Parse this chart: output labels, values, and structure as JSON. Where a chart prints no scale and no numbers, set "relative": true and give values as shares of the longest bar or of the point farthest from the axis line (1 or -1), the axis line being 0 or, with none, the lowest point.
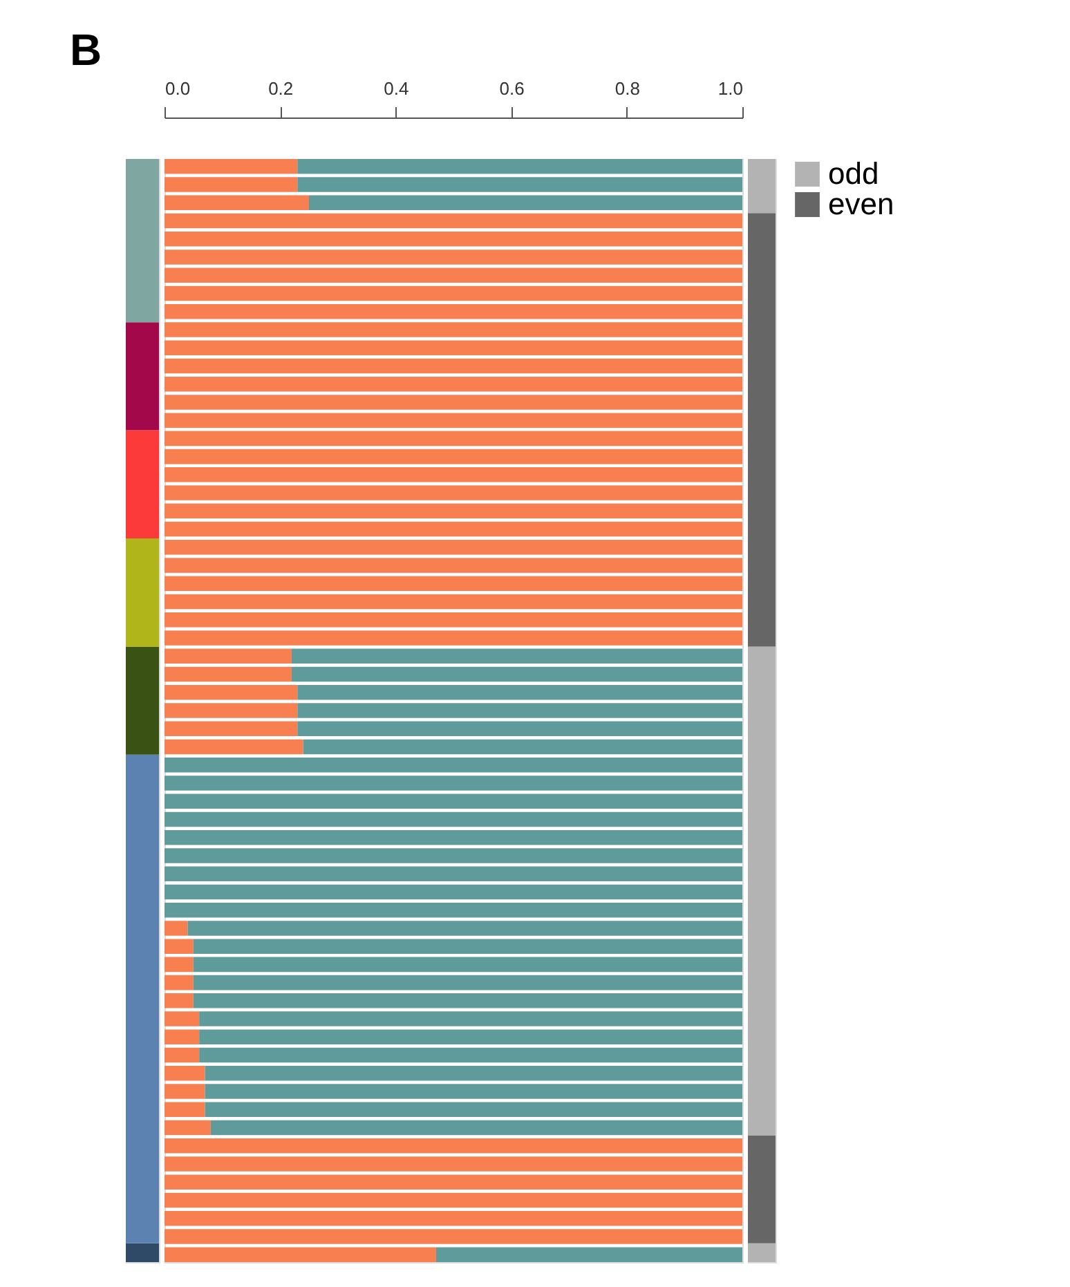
{
  "chart_data": [
    {
      "type": "bar",
      "relative": true,
      "stacked": true,
      "tick_labels": false,
      "grid": false,
      "categories": [
        null
      ],
      "series": [
        {
          "color": "#2e4a66",
          "values": [
            0.017
          ]
        },
        {
          "color": "#5b82b0",
          "values": [
            0.443
          ]
        },
        {
          "color": "#3a5213",
          "values": [
            0.098
          ]
        },
        {
          "color": "#b0b51a",
          "values": [
            0.098
          ]
        },
        {
          "color": "#fc3a3a",
          "values": [
            0.098
          ]
        },
        {
          "color": "#a3094a",
          "values": [
            0.098
          ]
        },
        {
          "color": "#7fa6a0",
          "values": [
            0.148
          ]
        }
      ]
    },
    {
      "type": "bar",
      "title": "B",
      "orientation": "horizontal",
      "stacked": true,
      "tick_labels": "x",
      "grid": false,
      "xlim": [
        0,
        1
      ],
      "xticks": [
        {
          "value": 0,
          "label": "0.0"
        },
        0.2,
        0.4,
        0.6,
        0.8,
        {
          "value": 1,
          "label": "1.0"
        }
      ],
      "categories": [
        null,
        null,
        null,
        null,
        null,
        null,
        null,
        null,
        null,
        null,
        null,
        null,
        null,
        null,
        null,
        null,
        null,
        null,
        null,
        null,
        null,
        null,
        null,
        null,
        null,
        null,
        null,
        null,
        null,
        null,
        null,
        null,
        null,
        null,
        null,
        null,
        null,
        null,
        null,
        null,
        null,
        null,
        null,
        null,
        null,
        null,
        null,
        null,
        null,
        null,
        null,
        null,
        null,
        null,
        null,
        null,
        null,
        null,
        null,
        null,
        null
      ],
      "series": [
        {
          "color": "#f77f50",
          "values": [
            0.23,
            0.23,
            0.25,
            1,
            1,
            1,
            1,
            1,
            1,
            1,
            1,
            1,
            1,
            1,
            1,
            1,
            1,
            1,
            1,
            1,
            1,
            1,
            1,
            1,
            1,
            1,
            1,
            0.22,
            0.22,
            0.23,
            0.23,
            0.23,
            0.24,
            0,
            0,
            0,
            0,
            0,
            0,
            0,
            0,
            0,
            0.04,
            0.05,
            0.05,
            0.05,
            0.05,
            0.06,
            0.06,
            0.06,
            0.07,
            0.07,
            0.07,
            0.08,
            1,
            1,
            1,
            1,
            1,
            1,
            0.47
          ]
        },
        {
          "color": "#5f9b9b",
          "values": [
            0.77,
            0.77,
            0.75,
            0,
            0,
            0,
            0,
            0,
            0,
            0,
            0,
            0,
            0,
            0,
            0,
            0,
            0,
            0,
            0,
            0,
            0,
            0,
            0,
            0,
            0,
            0,
            0,
            0.78,
            0.78,
            0.77,
            0.77,
            0.77,
            0.76,
            1,
            1,
            1,
            1,
            1,
            1,
            1,
            1,
            1,
            0.96,
            0.95,
            0.95,
            0.95,
            0.95,
            0.94,
            0.94,
            0.94,
            0.93,
            0.93,
            0.93,
            0.92,
            0,
            0,
            0,
            0,
            0,
            0,
            0.53
          ]
        }
      ]
    },
    {
      "type": "bar",
      "stacked": true,
      "relative": true,
      "tick_labels": false,
      "grid": false,
      "legend": "right",
      "categories": [
        null
      ],
      "series": [
        {
          "name": "odd",
          "color": "#b3b3b3",
          "values": [
            0.017
          ]
        },
        {
          "name": "even",
          "color": "#666666",
          "values": [
            0.098
          ]
        },
        {
          "color": "#b3b3b3",
          "values": [
            0.443
          ]
        },
        {
          "color": "#666666",
          "values": [
            0.393
          ]
        },
        {
          "color": "#b3b3b3",
          "values": [
            0.049
          ]
        }
      ]
    }
  ]
}
